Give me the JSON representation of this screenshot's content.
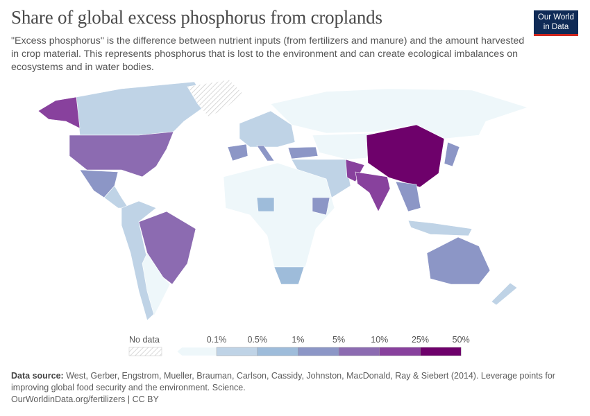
{
  "title": "Share of global excess phosphorus from croplands",
  "subtitle": "\"Excess phosphorus\" is the difference between nutrient inputs (from fertilizers and manure) and the amount harvested in crop material. This represents phosphorus that is lost to the environment and can create ecological imbalances on ecosystems and in water bodies.",
  "logo": {
    "line1": "Our World",
    "line2": "in Data"
  },
  "legend": {
    "no_data_label": "No data",
    "ticks": [
      "0.1%",
      "0.5%",
      "1%",
      "5%",
      "10%",
      "25%",
      "50%"
    ],
    "colors": [
      "#eef7fa",
      "#bfd3e6",
      "#9ebcda",
      "#8c96c6",
      "#8c6bb1",
      "#88419d",
      "#6e016b"
    ],
    "no_data_color": "#e6e6e6"
  },
  "map_data": [
    {
      "country": "China",
      "bin": "25%-50%"
    },
    {
      "country": "India",
      "bin": "10%-25%"
    },
    {
      "country": "Pakistan",
      "bin": "10%-25%"
    },
    {
      "country": "United States",
      "bin": "5%-10%"
    },
    {
      "country": "Brazil",
      "bin": "5%-10%"
    },
    {
      "country": "Mexico",
      "bin": "1%-5%"
    },
    {
      "country": "Australia",
      "bin": "1%-5%"
    },
    {
      "country": "Spain",
      "bin": "1%-5%"
    },
    {
      "country": "Turkey",
      "bin": "1%-5%"
    },
    {
      "country": "Ethiopia",
      "bin": "1%-5%"
    },
    {
      "country": "Japan",
      "bin": "1%-5%"
    },
    {
      "country": "South Africa",
      "bin": "0.5%-1%"
    },
    {
      "country": "Nigeria",
      "bin": "0.5%-1%"
    },
    {
      "country": "Canada",
      "bin": "0.1%-0.5%"
    },
    {
      "country": "Russia",
      "bin": "<0.1%"
    },
    {
      "country": "Greenland",
      "bin": "No data"
    }
  ],
  "footer": {
    "source_label": "Data source:",
    "source_text": " West, Gerber, Engstrom, Mueller, Brauman, Carlson, Cassidy, Johnston, MacDonald, Ray & Siebert (2014). Leverage points for improving global food security and the environment. Science.",
    "url": "OurWorldinData.org/fertilizers",
    "license": "CC BY"
  }
}
